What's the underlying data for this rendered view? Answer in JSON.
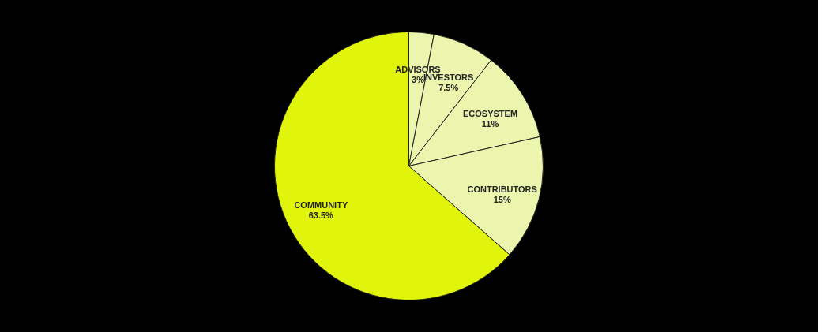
{
  "chart_data": {
    "type": "pie",
    "categories": [
      "ADVISORS",
      "INVESTORS",
      "ECOSYSTEM",
      "CONTRIBUTORS",
      "COMMUNITY"
    ],
    "values": [
      3,
      7.5,
      11,
      15,
      63.5
    ],
    "value_labels": [
      "3%",
      "7.5%",
      "11%",
      "15%",
      "63.5%"
    ],
    "colors": [
      "#ebf5ad",
      "#ebf5ad",
      "#ebf5ad",
      "#ebf5ad",
      "#e1f50c"
    ],
    "legend": false
  }
}
